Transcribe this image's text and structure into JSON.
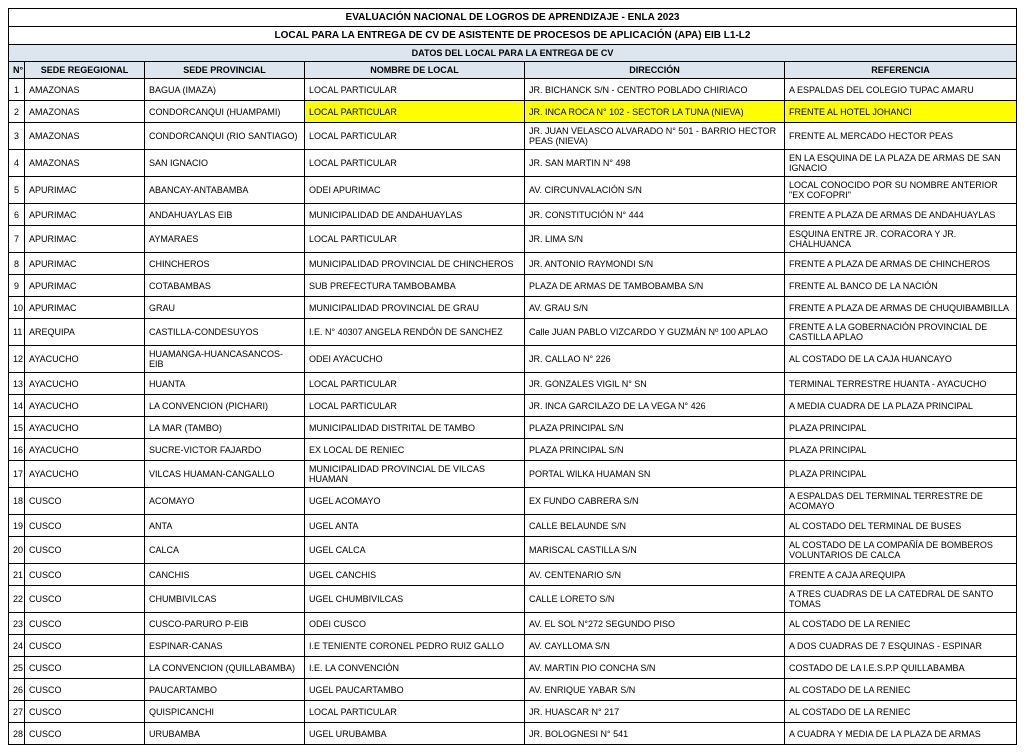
{
  "header": {
    "title1": "EVALUACIÓN NACIONAL DE LOGROS DE APRENDIZAJE - ENLA 2023",
    "title2": "LOCAL PARA LA ENTREGA DE CV DE ASISTENTE DE PROCESOS DE APLICACIÓN (APA) EIB L1-L2",
    "subtitle": "DATOS DEL LOCAL PARA LA ENTREGA DE CV"
  },
  "columns": {
    "n": "N°",
    "regional": "SEDE REGEGIONAL",
    "provincial": "SEDE PROVINCIAL",
    "local": "NOMBRE DE LOCAL",
    "direccion": "DIRECCIÓN",
    "referencia": "REFERENCIA"
  },
  "highlight_row_index": 1,
  "highlight_color": "#ffff00",
  "header_bg": "#dde6ef",
  "rows": [
    {
      "n": "1",
      "reg": "AMAZONAS",
      "prov": "BAGUA (IMAZA)",
      "loc": "LOCAL PARTICULAR",
      "dir": "JR. BICHANCK S/N - CENTRO POBLADO CHIRIACO",
      "ref": "A ESPALDAS DEL COLEGIO TUPAC AMARU"
    },
    {
      "n": "2",
      "reg": "AMAZONAS",
      "prov": "CONDORCANQUI (HUAMPAMI)",
      "loc": "LOCAL PARTICULAR",
      "dir": "JR. INCA ROCA N° 102 - SECTOR LA TUNA (NIEVA)",
      "ref": "FRENTE AL HOTEL JOHANCI"
    },
    {
      "n": "3",
      "reg": "AMAZONAS",
      "prov": "CONDORCANQUI (RIO SANTIAGO)",
      "loc": "LOCAL PARTICULAR",
      "dir": "JR. JUAN VELASCO ALVARADO N° 501 - BARRIO HECTOR PEAS (NIEVA)",
      "ref": "FRENTE AL MERCADO HECTOR PEAS"
    },
    {
      "n": "4",
      "reg": "AMAZONAS",
      "prov": "SAN IGNACIO",
      "loc": "LOCAL PARTICULAR",
      "dir": "JR. SAN MARTIN N° 498",
      "ref": "EN LA ESQUINA DE LA PLAZA DE ARMAS DE SAN IGNACIO"
    },
    {
      "n": "5",
      "reg": "APURIMAC",
      "prov": "ABANCAY-ANTABAMBA",
      "loc": "ODEI APURIMAC",
      "dir": "AV. CIRCUNVALACIÓN S/N",
      "ref": "LOCAL CONOCIDO POR SU NOMBRE ANTERIOR \"EX COFOPRI\""
    },
    {
      "n": "6",
      "reg": "APURIMAC",
      "prov": "ANDAHUAYLAS EIB",
      "loc": "MUNICIPALIDAD DE ANDAHUAYLAS",
      "dir": "JR. CONSTITUCIÓN N° 444",
      "ref": "FRENTE A PLAZA DE ARMAS DE ANDAHUAYLAS"
    },
    {
      "n": "7",
      "reg": "APURIMAC",
      "prov": "AYMARAES",
      "loc": "LOCAL PARTICULAR",
      "dir": "JR. LIMA S/N",
      "ref": "ESQUINA ENTRE JR. CORACORA Y JR. CHALHUANCA"
    },
    {
      "n": "8",
      "reg": "APURIMAC",
      "prov": "CHINCHEROS",
      "loc": "MUNICIPALIDAD PROVINCIAL DE CHINCHEROS",
      "dir": "JR. ANTONIO RAYMONDI S/N",
      "ref": "FRENTE A PLAZA DE ARMAS DE CHINCHEROS"
    },
    {
      "n": "9",
      "reg": "APURIMAC",
      "prov": "COTABAMBAS",
      "loc": "SUB PREFECTURA TAMBOBAMBA",
      "dir": "PLAZA DE ARMAS DE TAMBOBAMBA S/N",
      "ref": "FRENTE AL BANCO DE LA NACIÓN"
    },
    {
      "n": "10",
      "reg": "APURIMAC",
      "prov": "GRAU",
      "loc": "MUNICIPALIDAD PROVINCIAL DE GRAU",
      "dir": "AV. GRAU S/N",
      "ref": "FRENTE A PLAZA DE ARMAS DE CHUQUIBAMBILLA"
    },
    {
      "n": "11",
      "reg": "AREQUIPA",
      "prov": "CASTILLA-CONDESUYOS",
      "loc": "I.E. N° 40307 ANGELA RENDÓN DE SANCHEZ",
      "dir": "Calle JUAN PABLO VIZCARDO Y GUZMÁN Nº 100 APLAO",
      "ref": "FRENTE A LA GOBERNACIÓN PROVINCIAL DE CASTILLA APLAO"
    },
    {
      "n": "12",
      "reg": "AYACUCHO",
      "prov": "HUAMANGA-HUANCASANCOS- EIB",
      "loc": "ODEI AYACUCHO",
      "dir": "JR. CALLAO N° 226",
      "ref": "AL COSTADO DE LA CAJA HUANCAYO"
    },
    {
      "n": "13",
      "reg": "AYACUCHO",
      "prov": "HUANTA",
      "loc": "LOCAL PARTICULAR",
      "dir": "JR. GONZALES VIGIL N° SN",
      "ref": "TERMINAL TERRESTRE HUANTA - AYACUCHO"
    },
    {
      "n": "14",
      "reg": "AYACUCHO",
      "prov": "LA CONVENCION (PICHARI)",
      "loc": "LOCAL PARTICULAR",
      "dir": "JR. INCA GARCILAZO DE LA VEGA N° 426",
      "ref": "A MEDIA CUADRA DE LA PLAZA PRINCIPAL"
    },
    {
      "n": "15",
      "reg": "AYACUCHO",
      "prov": "LA MAR (TAMBO)",
      "loc": "MUNICIPALIDAD DISTRITAL DE TAMBO",
      "dir": "PLAZA PRINCIPAL S/N",
      "ref": "PLAZA PRINCIPAL"
    },
    {
      "n": "16",
      "reg": "AYACUCHO",
      "prov": "SUCRE-VICTOR FAJARDO",
      "loc": "EX LOCAL DE RENIEC",
      "dir": "PLAZA PRINCIPAL S/N",
      "ref": "PLAZA PRINCIPAL"
    },
    {
      "n": "17",
      "reg": "AYACUCHO",
      "prov": "VILCAS HUAMAN-CANGALLO",
      "loc": "MUNICIPALIDAD PROVINCIAL DE VILCAS HUAMAN",
      "dir": "PORTAL WILKA HUAMAN SN",
      "ref": "PLAZA PRINCIPAL"
    },
    {
      "n": "18",
      "reg": "CUSCO",
      "prov": "ACOMAYO",
      "loc": "UGEL ACOMAYO",
      "dir": "EX FUNDO CABRERA S/N",
      "ref": "A ESPALDAS DEL TERMINAL TERRESTRE DE ACOMAYO"
    },
    {
      "n": "19",
      "reg": "CUSCO",
      "prov": "ANTA",
      "loc": "UGEL ANTA",
      "dir": "CALLE BELAUNDE S/N",
      "ref": "AL COSTADO DEL TERMINAL DE BUSES"
    },
    {
      "n": "20",
      "reg": "CUSCO",
      "prov": "CALCA",
      "loc": "UGEL CALCA",
      "dir": "MARISCAL CASTILLA S/N",
      "ref": "AL COSTADO DE LA COMPAÑÍA DE BOMBEROS VOLUNTARIOS DE CALCA"
    },
    {
      "n": "21",
      "reg": "CUSCO",
      "prov": "CANCHIS",
      "loc": "UGEL CANCHIS",
      "dir": "AV. CENTENARIO S/N",
      "ref": "FRENTE A CAJA AREQUIPA"
    },
    {
      "n": "22",
      "reg": "CUSCO",
      "prov": "CHUMBIVILCAS",
      "loc": "UGEL CHUMBIVILCAS",
      "dir": "CALLE LORETO S/N",
      "ref": "A TRES CUADRAS DE LA CATEDRAL DE SANTO TOMAS"
    },
    {
      "n": "23",
      "reg": "CUSCO",
      "prov": "CUSCO-PARURO P-EIB",
      "loc": "ODEI CUSCO",
      "dir": "AV. EL SOL N°272 SEGUNDO PISO",
      "ref": "AL COSTADO DE LA RENIEC"
    },
    {
      "n": "24",
      "reg": "CUSCO",
      "prov": "ESPINAR-CANAS",
      "loc": "I.E TENIENTE CORONEL PEDRO RUIZ GALLO",
      "dir": "AV. CAYLLOMA S/N",
      "ref": "A DOS CUADRAS DE 7 ESQUINAS - ESPINAR"
    },
    {
      "n": "25",
      "reg": "CUSCO",
      "prov": "LA CONVENCION (QUILLABAMBA)",
      "loc": "I.E. LA CONVENCIÓN",
      "dir": "AV. MARTIN PIO CONCHA S/N",
      "ref": "COSTADO DE LA I.E.S.P.P QUILLABAMBA"
    },
    {
      "n": "26",
      "reg": "CUSCO",
      "prov": "PAUCARTAMBO",
      "loc": "UGEL PAUCARTAMBO",
      "dir": "AV. ENRIQUE YABAR S/N",
      "ref": "AL COSTADO DE LA RENIEC"
    },
    {
      "n": "27",
      "reg": "CUSCO",
      "prov": "QUISPICANCHI",
      "loc": "LOCAL PARTICULAR",
      "dir": "JR. HUASCAR N° 217",
      "ref": "AL COSTADO DE LA RENIEC"
    },
    {
      "n": "28",
      "reg": "CUSCO",
      "prov": "URUBAMBA",
      "loc": "UGEL URUBAMBA",
      "dir": "JR. BOLOGNESI N° 541",
      "ref": "A CUADRA Y MEDIA DE LA  PLAZA DE ARMAS"
    }
  ]
}
